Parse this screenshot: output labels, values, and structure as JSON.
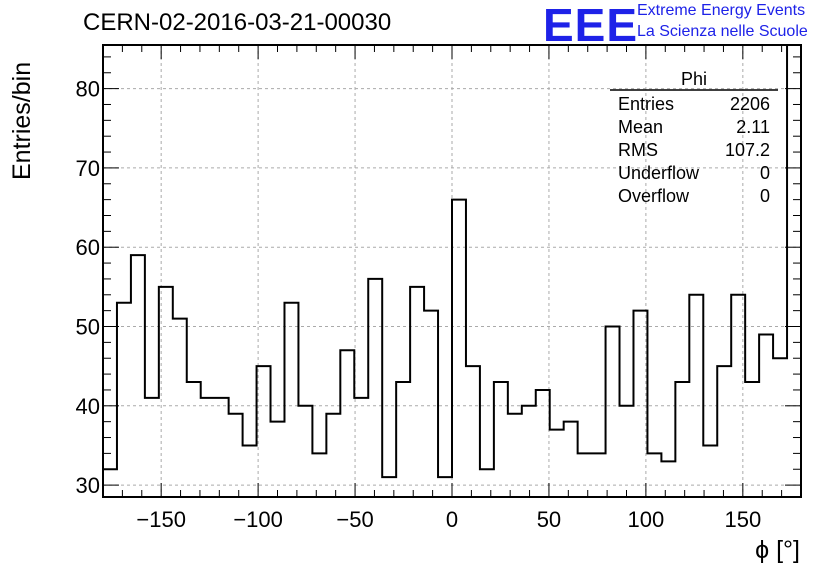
{
  "title": "CERN-02-2016-03-21-00030",
  "logo": {
    "mark": "EEE",
    "line1": "Extreme Energy Events",
    "line2": "La Scienza nelle Scuole",
    "color": "#1e22e8"
  },
  "stats": {
    "name": "Phi",
    "rows": [
      {
        "label": "Entries",
        "value": "2206"
      },
      {
        "label": "Mean",
        "value": "2.11"
      },
      {
        "label": "RMS",
        "value": "107.2"
      },
      {
        "label": "Underflow",
        "value": "0"
      },
      {
        "label": "Overflow",
        "value": "0"
      }
    ]
  },
  "chart_data": {
    "type": "bar",
    "style": "step-histogram",
    "title": "CERN-02-2016-03-21-00030",
    "xlabel": "ϕ [°]",
    "ylabel": "Entries/bin",
    "xlim": [
      -180,
      180
    ],
    "ylim": [
      28.5,
      85.5
    ],
    "bin_width": 7.2,
    "xticks": [
      -150,
      -100,
      -50,
      0,
      50,
      100,
      150
    ],
    "xtick_labels": [
      "−150",
      "−100",
      "−50",
      "0",
      "50",
      "100",
      "150"
    ],
    "yticks": [
      30,
      40,
      50,
      60,
      70,
      80
    ],
    "ytick_labels": [
      "30",
      "40",
      "50",
      "60",
      "70",
      "80"
    ],
    "grid": true,
    "values": [
      32,
      53,
      59,
      41,
      55,
      51,
      43,
      41,
      41,
      39,
      35,
      45,
      38,
      53,
      40,
      34,
      39,
      47,
      41,
      56,
      31,
      43,
      55,
      52,
      31,
      66,
      45,
      32,
      43,
      39,
      40,
      42,
      37,
      38,
      34,
      34,
      50,
      40,
      52,
      34,
      33,
      43,
      54,
      35,
      45,
      54,
      43,
      49,
      46,
      85.5
    ]
  }
}
